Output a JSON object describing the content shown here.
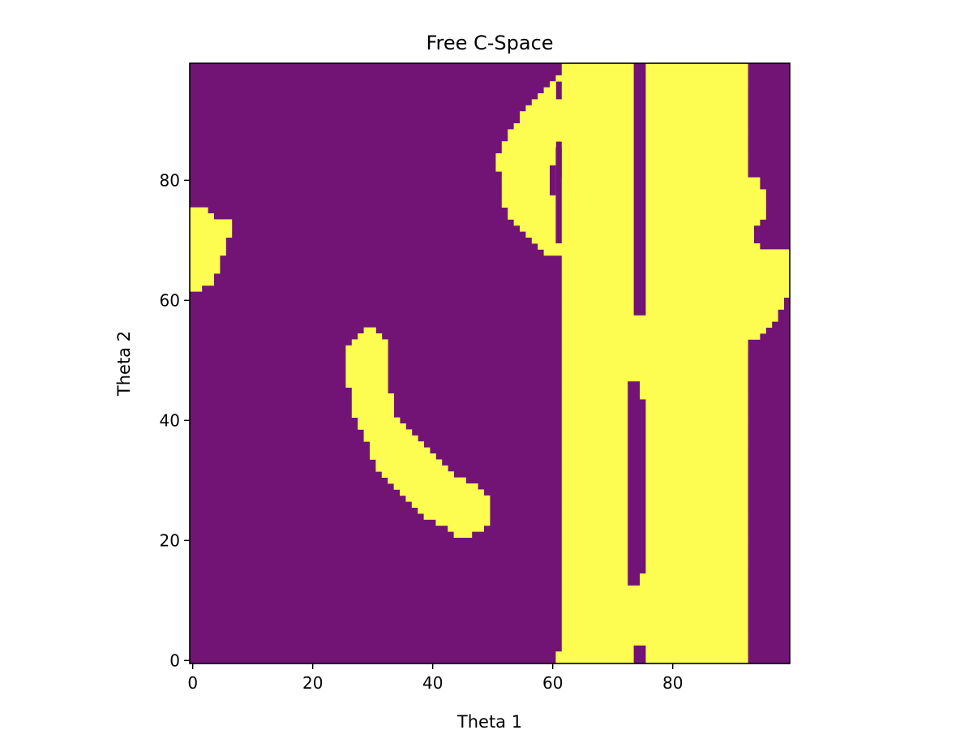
{
  "chart_data": {
    "type": "heatmap",
    "title": "Free C-Space",
    "xlabel": "Theta 1",
    "ylabel": "Theta 2",
    "xlim": [
      0,
      99
    ],
    "ylim": [
      0,
      99
    ],
    "x_ticks": [
      0,
      20,
      40,
      60,
      80
    ],
    "y_ticks": [
      0,
      20,
      40,
      60,
      80
    ],
    "grid_size": [
      100,
      100
    ],
    "origin": "lower",
    "colors": {
      "obstacle": "#721476",
      "free": "#FDFC50"
    },
    "legend": "none",
    "free_regions": [
      {
        "name": "left edge blob",
        "rows": [
          [
            62,
            0,
            1
          ],
          [
            63,
            0,
            3
          ],
          [
            64,
            0,
            3
          ],
          [
            65,
            0,
            4
          ],
          [
            66,
            0,
            4
          ],
          [
            67,
            0,
            4
          ],
          [
            68,
            0,
            5
          ],
          [
            69,
            0,
            5
          ],
          [
            70,
            0,
            5
          ],
          [
            71,
            0,
            6
          ],
          [
            72,
            0,
            6
          ],
          [
            73,
            0,
            6
          ],
          [
            74,
            0,
            3
          ],
          [
            75,
            0,
            2
          ]
        ]
      },
      {
        "name": "curved arc",
        "rows": [
          [
            21,
            44,
            46
          ],
          [
            22,
            43,
            48
          ],
          [
            23,
            41,
            49
          ],
          [
            24,
            39,
            49
          ],
          [
            25,
            38,
            49
          ],
          [
            26,
            37,
            49
          ],
          [
            27,
            36,
            49
          ],
          [
            28,
            35,
            48
          ],
          [
            29,
            34,
            47
          ],
          [
            30,
            33,
            45
          ],
          [
            31,
            32,
            43
          ],
          [
            32,
            31,
            42
          ],
          [
            33,
            31,
            41
          ],
          [
            34,
            30,
            40
          ],
          [
            35,
            30,
            39
          ],
          [
            36,
            30,
            38
          ],
          [
            37,
            29,
            37
          ],
          [
            38,
            29,
            36
          ],
          [
            39,
            28,
            35
          ],
          [
            40,
            28,
            34
          ],
          [
            41,
            27,
            33
          ],
          [
            42,
            27,
            33
          ],
          [
            43,
            27,
            33
          ],
          [
            44,
            27,
            33
          ],
          [
            45,
            27,
            32
          ],
          [
            46,
            26,
            32
          ],
          [
            47,
            26,
            32
          ],
          [
            48,
            26,
            32
          ],
          [
            49,
            26,
            32
          ],
          [
            50,
            26,
            32
          ],
          [
            51,
            26,
            32
          ],
          [
            52,
            26,
            32
          ],
          [
            53,
            27,
            32
          ],
          [
            54,
            28,
            31
          ],
          [
            55,
            29,
            30
          ]
        ]
      },
      {
        "name": "main vertical band",
        "rows_from": 0,
        "rows_to": 99,
        "x_start": 62,
        "x_end": 92,
        "notes": "bottom rows start at 61; includes a narrow obstacle column around x=74-75 with gaps"
      },
      {
        "name": "upper loop",
        "rows": [
          [
            68,
            59,
            62
          ],
          [
            69,
            58,
            62
          ],
          [
            70,
            57,
            62
          ],
          [
            71,
            56,
            62
          ],
          [
            72,
            55,
            62
          ],
          [
            73,
            54,
            62
          ],
          [
            74,
            53,
            62
          ],
          [
            75,
            53,
            62
          ],
          [
            76,
            52,
            62
          ],
          [
            77,
            52,
            62
          ],
          [
            78,
            52,
            62
          ],
          [
            79,
            52,
            62
          ],
          [
            80,
            52,
            61
          ],
          [
            81,
            52,
            60
          ],
          [
            82,
            51,
            60
          ],
          [
            83,
            51,
            60
          ],
          [
            84,
            51,
            60
          ],
          [
            85,
            52,
            60
          ],
          [
            86,
            52,
            60
          ],
          [
            87,
            53,
            61
          ],
          [
            88,
            53,
            62
          ],
          [
            89,
            54,
            62
          ],
          [
            90,
            55,
            62
          ],
          [
            91,
            55,
            62
          ],
          [
            92,
            56,
            62
          ],
          [
            93,
            57,
            62
          ],
          [
            94,
            58,
            60
          ],
          [
            95,
            59,
            60
          ],
          [
            96,
            60,
            60
          ],
          [
            97,
            61,
            61
          ]
        ]
      },
      {
        "name": "right loop",
        "rows": [
          [
            54,
            93,
            94
          ],
          [
            55,
            93,
            95
          ],
          [
            56,
            93,
            96
          ],
          [
            57,
            93,
            97
          ],
          [
            58,
            93,
            97
          ],
          [
            59,
            93,
            98
          ],
          [
            60,
            93,
            98
          ],
          [
            61,
            93,
            99
          ],
          [
            62,
            93,
            99
          ],
          [
            63,
            93,
            99
          ],
          [
            64,
            93,
            99
          ],
          [
            65,
            93,
            99
          ],
          [
            66,
            93,
            99
          ],
          [
            67,
            93,
            99
          ],
          [
            68,
            93,
            99
          ],
          [
            69,
            93,
            94
          ],
          [
            70,
            93,
            93
          ],
          [
            71,
            93,
            93
          ],
          [
            72,
            93,
            93
          ],
          [
            73,
            93,
            94
          ],
          [
            74,
            93,
            95
          ],
          [
            75,
            93,
            95
          ],
          [
            76,
            93,
            95
          ],
          [
            77,
            93,
            95
          ],
          [
            78,
            93,
            95
          ],
          [
            79,
            93,
            94
          ],
          [
            80,
            93,
            94
          ]
        ]
      }
    ]
  }
}
